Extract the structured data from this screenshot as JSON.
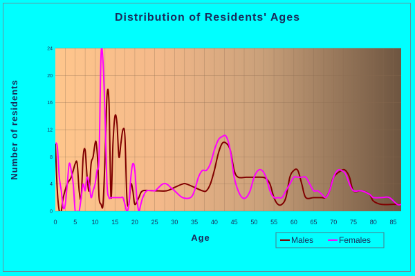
{
  "chart_data": {
    "type": "line",
    "title": "Distribution of Residents' Ages",
    "xlabel": "Age",
    "ylabel": "Number of residents",
    "xlim": [
      0,
      87
    ],
    "ylim": [
      0,
      24
    ],
    "xticks": [
      "0",
      "5",
      "10",
      "15",
      "20",
      "25",
      "30",
      "35",
      "40",
      "45",
      "50",
      "55",
      "60",
      "65",
      "70",
      "75",
      "80",
      "85"
    ],
    "yticks": [
      "0",
      "4",
      "8",
      "12",
      "16",
      "20",
      "24"
    ],
    "grid": true,
    "legend_position": "bottom-right",
    "series": [
      {
        "name": "Males",
        "color": "#800000",
        "points": [
          [
            0,
            10
          ],
          [
            0.5,
            3
          ],
          [
            1,
            0
          ],
          [
            1.5,
            0
          ],
          [
            2,
            2
          ],
          [
            3,
            4
          ],
          [
            4,
            5
          ],
          [
            5,
            7
          ],
          [
            5.5,
            7
          ],
          [
            6,
            3
          ],
          [
            6.5,
            2
          ],
          [
            7,
            8
          ],
          [
            7.5,
            9
          ],
          [
            8,
            5
          ],
          [
            8.5,
            3
          ],
          [
            9,
            7
          ],
          [
            9.5,
            8
          ],
          [
            10,
            10
          ],
          [
            10.3,
            10
          ],
          [
            10.7,
            7
          ],
          [
            11,
            2
          ],
          [
            11.5,
            1
          ],
          [
            12,
            1
          ],
          [
            12.5,
            8
          ],
          [
            13,
            17
          ],
          [
            13.5,
            16
          ],
          [
            14,
            2
          ],
          [
            14.5,
            10
          ],
          [
            15,
            14
          ],
          [
            15.5,
            13
          ],
          [
            16,
            8
          ],
          [
            16.5,
            10
          ],
          [
            17,
            12
          ],
          [
            17.5,
            11
          ],
          [
            18,
            2
          ],
          [
            18.5,
            1
          ],
          [
            19,
            4
          ],
          [
            19.5,
            3
          ],
          [
            20,
            1
          ],
          [
            21,
            2
          ],
          [
            22,
            3
          ],
          [
            25,
            3
          ],
          [
            28,
            3
          ],
          [
            30,
            3.5
          ],
          [
            32,
            4
          ],
          [
            33,
            4
          ],
          [
            35,
            3.5
          ],
          [
            37,
            3
          ],
          [
            38,
            3
          ],
          [
            39,
            4
          ],
          [
            40,
            6
          ],
          [
            41,
            8.5
          ],
          [
            42,
            10
          ],
          [
            43,
            10
          ],
          [
            44,
            9
          ],
          [
            45,
            6
          ],
          [
            46,
            5
          ],
          [
            48,
            5
          ],
          [
            50,
            5
          ],
          [
            52,
            5
          ],
          [
            53,
            4.8
          ],
          [
            54,
            4
          ],
          [
            55,
            2
          ],
          [
            56,
            1
          ],
          [
            57,
            1
          ],
          [
            58,
            2
          ],
          [
            59,
            5
          ],
          [
            60,
            6
          ],
          [
            61,
            6
          ],
          [
            62,
            4
          ],
          [
            63,
            2
          ],
          [
            65,
            2
          ],
          [
            67,
            2
          ],
          [
            68,
            2
          ],
          [
            69,
            3
          ],
          [
            70,
            5
          ],
          [
            72,
            6
          ],
          [
            73,
            6
          ],
          [
            74,
            5
          ],
          [
            75,
            3
          ],
          [
            77,
            3
          ],
          [
            79,
            2.5
          ],
          [
            80,
            1.5
          ],
          [
            82,
            1
          ],
          [
            85,
            1
          ],
          [
            87,
            1
          ]
        ]
      },
      {
        "name": "Females",
        "color": "#ff00ff",
        "points": [
          [
            0,
            10
          ],
          [
            0.5,
            9.5
          ],
          [
            1,
            5
          ],
          [
            1.5,
            3
          ],
          [
            2,
            0.5
          ],
          [
            2.5,
            1
          ],
          [
            3,
            4
          ],
          [
            3.5,
            7
          ],
          [
            4,
            6
          ],
          [
            4.5,
            4
          ],
          [
            5,
            0
          ],
          [
            5.5,
            0
          ],
          [
            6,
            0
          ],
          [
            6.5,
            2
          ],
          [
            7,
            4
          ],
          [
            7.5,
            3
          ],
          [
            8,
            5
          ],
          [
            8.5,
            4
          ],
          [
            9,
            2
          ],
          [
            9.5,
            3
          ],
          [
            10,
            4
          ],
          [
            10.5,
            6
          ],
          [
            11,
            8
          ],
          [
            11.5,
            23
          ],
          [
            12,
            22
          ],
          [
            12.5,
            14
          ],
          [
            13,
            4
          ],
          [
            13.5,
            2
          ],
          [
            14,
            2
          ],
          [
            15,
            2
          ],
          [
            16,
            2
          ],
          [
            16.5,
            2
          ],
          [
            17,
            2
          ],
          [
            17.5,
            1
          ],
          [
            18,
            0
          ],
          [
            18.5,
            1
          ],
          [
            19,
            5
          ],
          [
            19.5,
            7
          ],
          [
            20,
            6
          ],
          [
            20.5,
            2
          ],
          [
            21,
            0
          ],
          [
            21.5,
            1
          ],
          [
            22,
            2
          ],
          [
            23,
            3
          ],
          [
            25,
            3
          ],
          [
            26,
            3.5
          ],
          [
            27,
            4
          ],
          [
            28,
            4
          ],
          [
            29,
            3.5
          ],
          [
            30,
            3
          ],
          [
            32,
            2
          ],
          [
            34,
            2
          ],
          [
            35,
            3
          ],
          [
            36,
            5
          ],
          [
            37,
            6
          ],
          [
            38,
            6
          ],
          [
            39,
            7
          ],
          [
            40,
            9
          ],
          [
            41,
            10.5
          ],
          [
            42,
            11
          ],
          [
            43,
            11
          ],
          [
            44,
            9
          ],
          [
            45,
            5
          ],
          [
            46,
            3
          ],
          [
            47,
            2
          ],
          [
            48,
            2
          ],
          [
            49,
            3
          ],
          [
            50,
            5
          ],
          [
            51,
            6
          ],
          [
            52,
            6
          ],
          [
            53,
            5
          ],
          [
            54,
            3
          ],
          [
            55,
            2
          ],
          [
            56,
            2
          ],
          [
            57,
            2
          ],
          [
            58,
            3
          ],
          [
            59,
            4
          ],
          [
            60,
            5
          ],
          [
            61,
            5
          ],
          [
            62,
            5
          ],
          [
            63,
            5
          ],
          [
            64,
            4
          ],
          [
            65,
            3
          ],
          [
            66,
            3
          ],
          [
            67,
            2.5
          ],
          [
            68,
            2
          ],
          [
            69,
            3
          ],
          [
            70,
            5
          ],
          [
            71,
            6
          ],
          [
            72,
            6
          ],
          [
            73,
            5.5
          ],
          [
            74,
            4
          ],
          [
            75,
            3
          ],
          [
            77,
            3
          ],
          [
            79,
            2.5
          ],
          [
            80,
            2
          ],
          [
            82,
            2
          ],
          [
            84,
            2
          ],
          [
            86,
            1
          ],
          [
            87,
            1
          ]
        ]
      }
    ]
  }
}
